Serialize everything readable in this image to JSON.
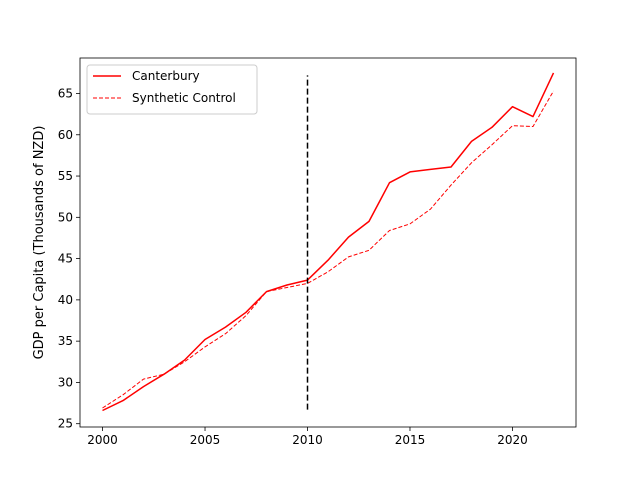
{
  "chart_data": {
    "type": "line",
    "title": "",
    "xlabel": "",
    "ylabel": "GDP per Capita (Thousands of NZD)",
    "xlim": [
      1998.9,
      2023.1
    ],
    "ylim": [
      24.6,
      69.3
    ],
    "x_ticks": [
      2000,
      2005,
      2010,
      2015,
      2020
    ],
    "y_ticks": [
      25,
      30,
      35,
      40,
      45,
      50,
      55,
      60,
      65
    ],
    "grid": false,
    "legend_position": "upper-left",
    "x": [
      2000,
      2001,
      2002,
      2003,
      2004,
      2005,
      2006,
      2007,
      2008,
      2009,
      2010,
      2011,
      2012,
      2013,
      2014,
      2015,
      2016,
      2017,
      2018,
      2019,
      2020,
      2021,
      2022
    ],
    "series": [
      {
        "name": "Canterbury",
        "color": "#ff0000",
        "style": "solid",
        "values": [
          26.6,
          27.8,
          29.5,
          31.0,
          32.7,
          35.2,
          36.7,
          38.5,
          41.0,
          41.8,
          42.4,
          44.8,
          47.6,
          49.5,
          54.2,
          55.5,
          55.8,
          56.1,
          59.2,
          60.9,
          63.4,
          62.2,
          67.5
        ]
      },
      {
        "name": "Synthetic Control",
        "color": "#ff0000",
        "style": "dashed",
        "values": [
          26.9,
          28.5,
          30.4,
          31.0,
          32.5,
          34.3,
          35.9,
          38.1,
          41.0,
          41.5,
          42.0,
          43.4,
          45.2,
          46.0,
          48.4,
          49.2,
          51.0,
          53.9,
          56.6,
          58.8,
          61.1,
          61.0,
          65.3
        ]
      }
    ],
    "annotations": [
      {
        "type": "vline",
        "x": 2010,
        "y_range": [
          26.7,
          67.2
        ],
        "color": "#000000",
        "style": "dashed"
      }
    ]
  }
}
